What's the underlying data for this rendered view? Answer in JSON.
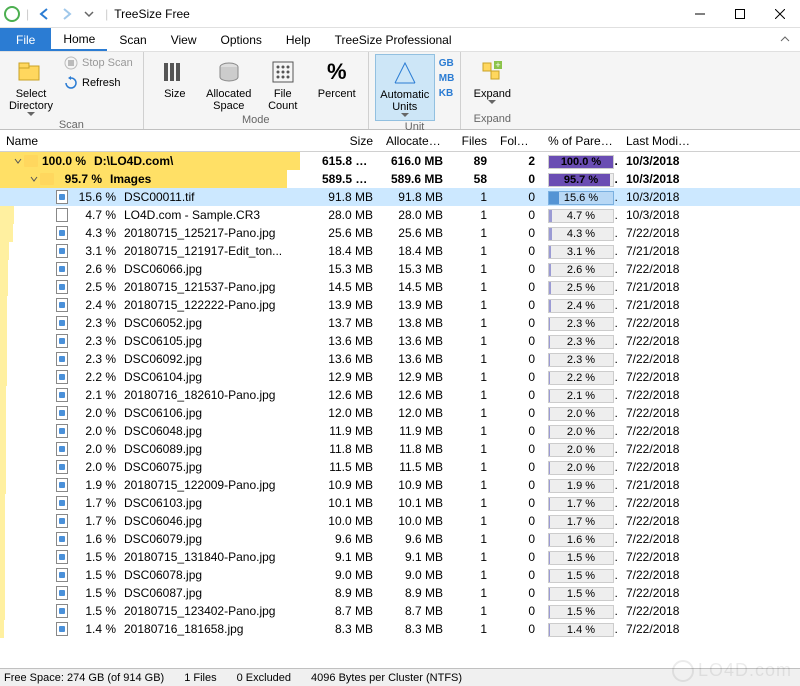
{
  "window": {
    "title": "TreeSize Free"
  },
  "menu": {
    "file": "File",
    "items": [
      "Home",
      "Scan",
      "View",
      "Options",
      "Help",
      "TreeSize Professional"
    ],
    "active_index": 0
  },
  "ribbon": {
    "scan": {
      "label": "Scan",
      "select_directory": "Select Directory",
      "stop_scan": "Stop Scan",
      "refresh": "Refresh"
    },
    "mode": {
      "label": "Mode",
      "size": "Size",
      "allocated": "Allocated Space",
      "file_count": "File Count",
      "percent": "Percent"
    },
    "unit": {
      "label": "Unit",
      "auto": "Automatic Units",
      "gb": "GB",
      "mb": "MB",
      "kb": "KB"
    },
    "expand": {
      "label": "Expand",
      "expand": "Expand"
    }
  },
  "columns": {
    "name": "Name",
    "size": "Size",
    "allocated": "Allocated",
    "files": "Files",
    "folders": "Folders",
    "percent": "% of Parent (...",
    "modified": "Last Modified"
  },
  "row_bar_colors": {
    "folder": "#ffe066",
    "file": "#fff0a0"
  },
  "rows": [
    {
      "type": "folder",
      "depth": 0,
      "chevron": "down",
      "pct_label": "100.0 %",
      "name": "D:\\LO4D.com\\",
      "size": "615.8 MB",
      "alloc": "616.0 MB",
      "files": "89",
      "folders": "2",
      "percent": "100.0 %",
      "pfill": 100,
      "date": "10/3/2018",
      "bold": true,
      "bar": 100,
      "pbar": "purple"
    },
    {
      "type": "folder",
      "depth": 1,
      "chevron": "down",
      "pct_label": "95.7 %",
      "name": "Images",
      "size": "589.5 MB",
      "alloc": "589.6 MB",
      "files": "58",
      "folders": "0",
      "percent": "95.7 %",
      "pfill": 95.7,
      "date": "10/3/2018",
      "bold": true,
      "bar": 95.7,
      "pbar": "purple"
    },
    {
      "type": "file",
      "icon": "img",
      "depth": 2,
      "pct_label": "15.6 %",
      "name": "DSC00011.tif",
      "size": "91.8 MB",
      "alloc": "91.8 MB",
      "files": "1",
      "folders": "0",
      "percent": "15.6 %",
      "pfill": 15.6,
      "date": "10/3/2018",
      "bar": 15.6,
      "selected": true,
      "pbar": "blue"
    },
    {
      "type": "file",
      "icon": "doc",
      "depth": 2,
      "pct_label": "4.7 %",
      "name": "LO4D.com - Sample.CR3",
      "size": "28.0 MB",
      "alloc": "28.0 MB",
      "files": "1",
      "folders": "0",
      "percent": "4.7 %",
      "pfill": 4.7,
      "date": "10/3/2018",
      "bar": 4.7
    },
    {
      "type": "file",
      "icon": "img",
      "depth": 2,
      "pct_label": "4.3 %",
      "name": "20180715_125217-Pano.jpg",
      "size": "25.6 MB",
      "alloc": "25.6 MB",
      "files": "1",
      "folders": "0",
      "percent": "4.3 %",
      "pfill": 4.3,
      "date": "7/22/2018",
      "bar": 4.3
    },
    {
      "type": "file",
      "icon": "img",
      "depth": 2,
      "pct_label": "3.1 %",
      "name": "20180715_121917-Edit_ton...",
      "size": "18.4 MB",
      "alloc": "18.4 MB",
      "files": "1",
      "folders": "0",
      "percent": "3.1 %",
      "pfill": 3.1,
      "date": "7/21/2018",
      "bar": 3.1
    },
    {
      "type": "file",
      "icon": "img",
      "depth": 2,
      "pct_label": "2.6 %",
      "name": "DSC06066.jpg",
      "size": "15.3 MB",
      "alloc": "15.3 MB",
      "files": "1",
      "folders": "0",
      "percent": "2.6 %",
      "pfill": 2.6,
      "date": "7/22/2018",
      "bar": 2.6
    },
    {
      "type": "file",
      "icon": "img",
      "depth": 2,
      "pct_label": "2.5 %",
      "name": "20180715_121537-Pano.jpg",
      "size": "14.5 MB",
      "alloc": "14.5 MB",
      "files": "1",
      "folders": "0",
      "percent": "2.5 %",
      "pfill": 2.5,
      "date": "7/21/2018",
      "bar": 2.5
    },
    {
      "type": "file",
      "icon": "img",
      "depth": 2,
      "pct_label": "2.4 %",
      "name": "20180715_122222-Pano.jpg",
      "size": "13.9 MB",
      "alloc": "13.9 MB",
      "files": "1",
      "folders": "0",
      "percent": "2.4 %",
      "pfill": 2.4,
      "date": "7/21/2018",
      "bar": 2.4
    },
    {
      "type": "file",
      "icon": "img",
      "depth": 2,
      "pct_label": "2.3 %",
      "name": "DSC06052.jpg",
      "size": "13.7 MB",
      "alloc": "13.8 MB",
      "files": "1",
      "folders": "0",
      "percent": "2.3 %",
      "pfill": 2.3,
      "date": "7/22/2018",
      "bar": 2.3
    },
    {
      "type": "file",
      "icon": "img",
      "depth": 2,
      "pct_label": "2.3 %",
      "name": "DSC06105.jpg",
      "size": "13.6 MB",
      "alloc": "13.6 MB",
      "files": "1",
      "folders": "0",
      "percent": "2.3 %",
      "pfill": 2.3,
      "date": "7/22/2018",
      "bar": 2.3
    },
    {
      "type": "file",
      "icon": "img",
      "depth": 2,
      "pct_label": "2.3 %",
      "name": "DSC06092.jpg",
      "size": "13.6 MB",
      "alloc": "13.6 MB",
      "files": "1",
      "folders": "0",
      "percent": "2.3 %",
      "pfill": 2.3,
      "date": "7/22/2018",
      "bar": 2.3
    },
    {
      "type": "file",
      "icon": "img",
      "depth": 2,
      "pct_label": "2.2 %",
      "name": "DSC06104.jpg",
      "size": "12.9 MB",
      "alloc": "12.9 MB",
      "files": "1",
      "folders": "0",
      "percent": "2.2 %",
      "pfill": 2.2,
      "date": "7/22/2018",
      "bar": 2.2
    },
    {
      "type": "file",
      "icon": "img",
      "depth": 2,
      "pct_label": "2.1 %",
      "name": "20180716_182610-Pano.jpg",
      "size": "12.6 MB",
      "alloc": "12.6 MB",
      "files": "1",
      "folders": "0",
      "percent": "2.1 %",
      "pfill": 2.1,
      "date": "7/22/2018",
      "bar": 2.1
    },
    {
      "type": "file",
      "icon": "img",
      "depth": 2,
      "pct_label": "2.0 %",
      "name": "DSC06106.jpg",
      "size": "12.0 MB",
      "alloc": "12.0 MB",
      "files": "1",
      "folders": "0",
      "percent": "2.0 %",
      "pfill": 2.0,
      "date": "7/22/2018",
      "bar": 2.0
    },
    {
      "type": "file",
      "icon": "img",
      "depth": 2,
      "pct_label": "2.0 %",
      "name": "DSC06048.jpg",
      "size": "11.9 MB",
      "alloc": "11.9 MB",
      "files": "1",
      "folders": "0",
      "percent": "2.0 %",
      "pfill": 2.0,
      "date": "7/22/2018",
      "bar": 2.0
    },
    {
      "type": "file",
      "icon": "img",
      "depth": 2,
      "pct_label": "2.0 %",
      "name": "DSC06089.jpg",
      "size": "11.8 MB",
      "alloc": "11.8 MB",
      "files": "1",
      "folders": "0",
      "percent": "2.0 %",
      "pfill": 2.0,
      "date": "7/22/2018",
      "bar": 2.0
    },
    {
      "type": "file",
      "icon": "img",
      "depth": 2,
      "pct_label": "2.0 %",
      "name": "DSC06075.jpg",
      "size": "11.5 MB",
      "alloc": "11.5 MB",
      "files": "1",
      "folders": "0",
      "percent": "2.0 %",
      "pfill": 2.0,
      "date": "7/22/2018",
      "bar": 2.0
    },
    {
      "type": "file",
      "icon": "img",
      "depth": 2,
      "pct_label": "1.9 %",
      "name": "20180715_122009-Pano.jpg",
      "size": "10.9 MB",
      "alloc": "10.9 MB",
      "files": "1",
      "folders": "0",
      "percent": "1.9 %",
      "pfill": 1.9,
      "date": "7/21/2018",
      "bar": 1.9
    },
    {
      "type": "file",
      "icon": "img",
      "depth": 2,
      "pct_label": "1.7 %",
      "name": "DSC06103.jpg",
      "size": "10.1 MB",
      "alloc": "10.1 MB",
      "files": "1",
      "folders": "0",
      "percent": "1.7 %",
      "pfill": 1.7,
      "date": "7/22/2018",
      "bar": 1.7
    },
    {
      "type": "file",
      "icon": "img",
      "depth": 2,
      "pct_label": "1.7 %",
      "name": "DSC06046.jpg",
      "size": "10.0 MB",
      "alloc": "10.0 MB",
      "files": "1",
      "folders": "0",
      "percent": "1.7 %",
      "pfill": 1.7,
      "date": "7/22/2018",
      "bar": 1.7
    },
    {
      "type": "file",
      "icon": "img",
      "depth": 2,
      "pct_label": "1.6 %",
      "name": "DSC06079.jpg",
      "size": "9.6 MB",
      "alloc": "9.6 MB",
      "files": "1",
      "folders": "0",
      "percent": "1.6 %",
      "pfill": 1.6,
      "date": "7/22/2018",
      "bar": 1.6
    },
    {
      "type": "file",
      "icon": "img",
      "depth": 2,
      "pct_label": "1.5 %",
      "name": "20180715_131840-Pano.jpg",
      "size": "9.1 MB",
      "alloc": "9.1 MB",
      "files": "1",
      "folders": "0",
      "percent": "1.5 %",
      "pfill": 1.5,
      "date": "7/22/2018",
      "bar": 1.5
    },
    {
      "type": "file",
      "icon": "img",
      "depth": 2,
      "pct_label": "1.5 %",
      "name": "DSC06078.jpg",
      "size": "9.0 MB",
      "alloc": "9.0 MB",
      "files": "1",
      "folders": "0",
      "percent": "1.5 %",
      "pfill": 1.5,
      "date": "7/22/2018",
      "bar": 1.5
    },
    {
      "type": "file",
      "icon": "img",
      "depth": 2,
      "pct_label": "1.5 %",
      "name": "DSC06087.jpg",
      "size": "8.9 MB",
      "alloc": "8.9 MB",
      "files": "1",
      "folders": "0",
      "percent": "1.5 %",
      "pfill": 1.5,
      "date": "7/22/2018",
      "bar": 1.5
    },
    {
      "type": "file",
      "icon": "img",
      "depth": 2,
      "pct_label": "1.5 %",
      "name": "20180715_123402-Pano.jpg",
      "size": "8.7 MB",
      "alloc": "8.7 MB",
      "files": "1",
      "folders": "0",
      "percent": "1.5 %",
      "pfill": 1.5,
      "date": "7/22/2018",
      "bar": 1.5
    },
    {
      "type": "file",
      "icon": "img",
      "depth": 2,
      "pct_label": "1.4 %",
      "name": "20180716_181658.jpg",
      "size": "8.3 MB",
      "alloc": "8.3 MB",
      "files": "1",
      "folders": "0",
      "percent": "1.4 %",
      "pfill": 1.4,
      "date": "7/22/2018",
      "bar": 1.4
    }
  ],
  "status": {
    "free": "Free Space: 274 GB  (of 914 GB)",
    "files": "1  Files",
    "excluded": "0 Excluded",
    "cluster": "4096  Bytes per Cluster (NTFS)"
  },
  "watermark": "LO4D.com"
}
